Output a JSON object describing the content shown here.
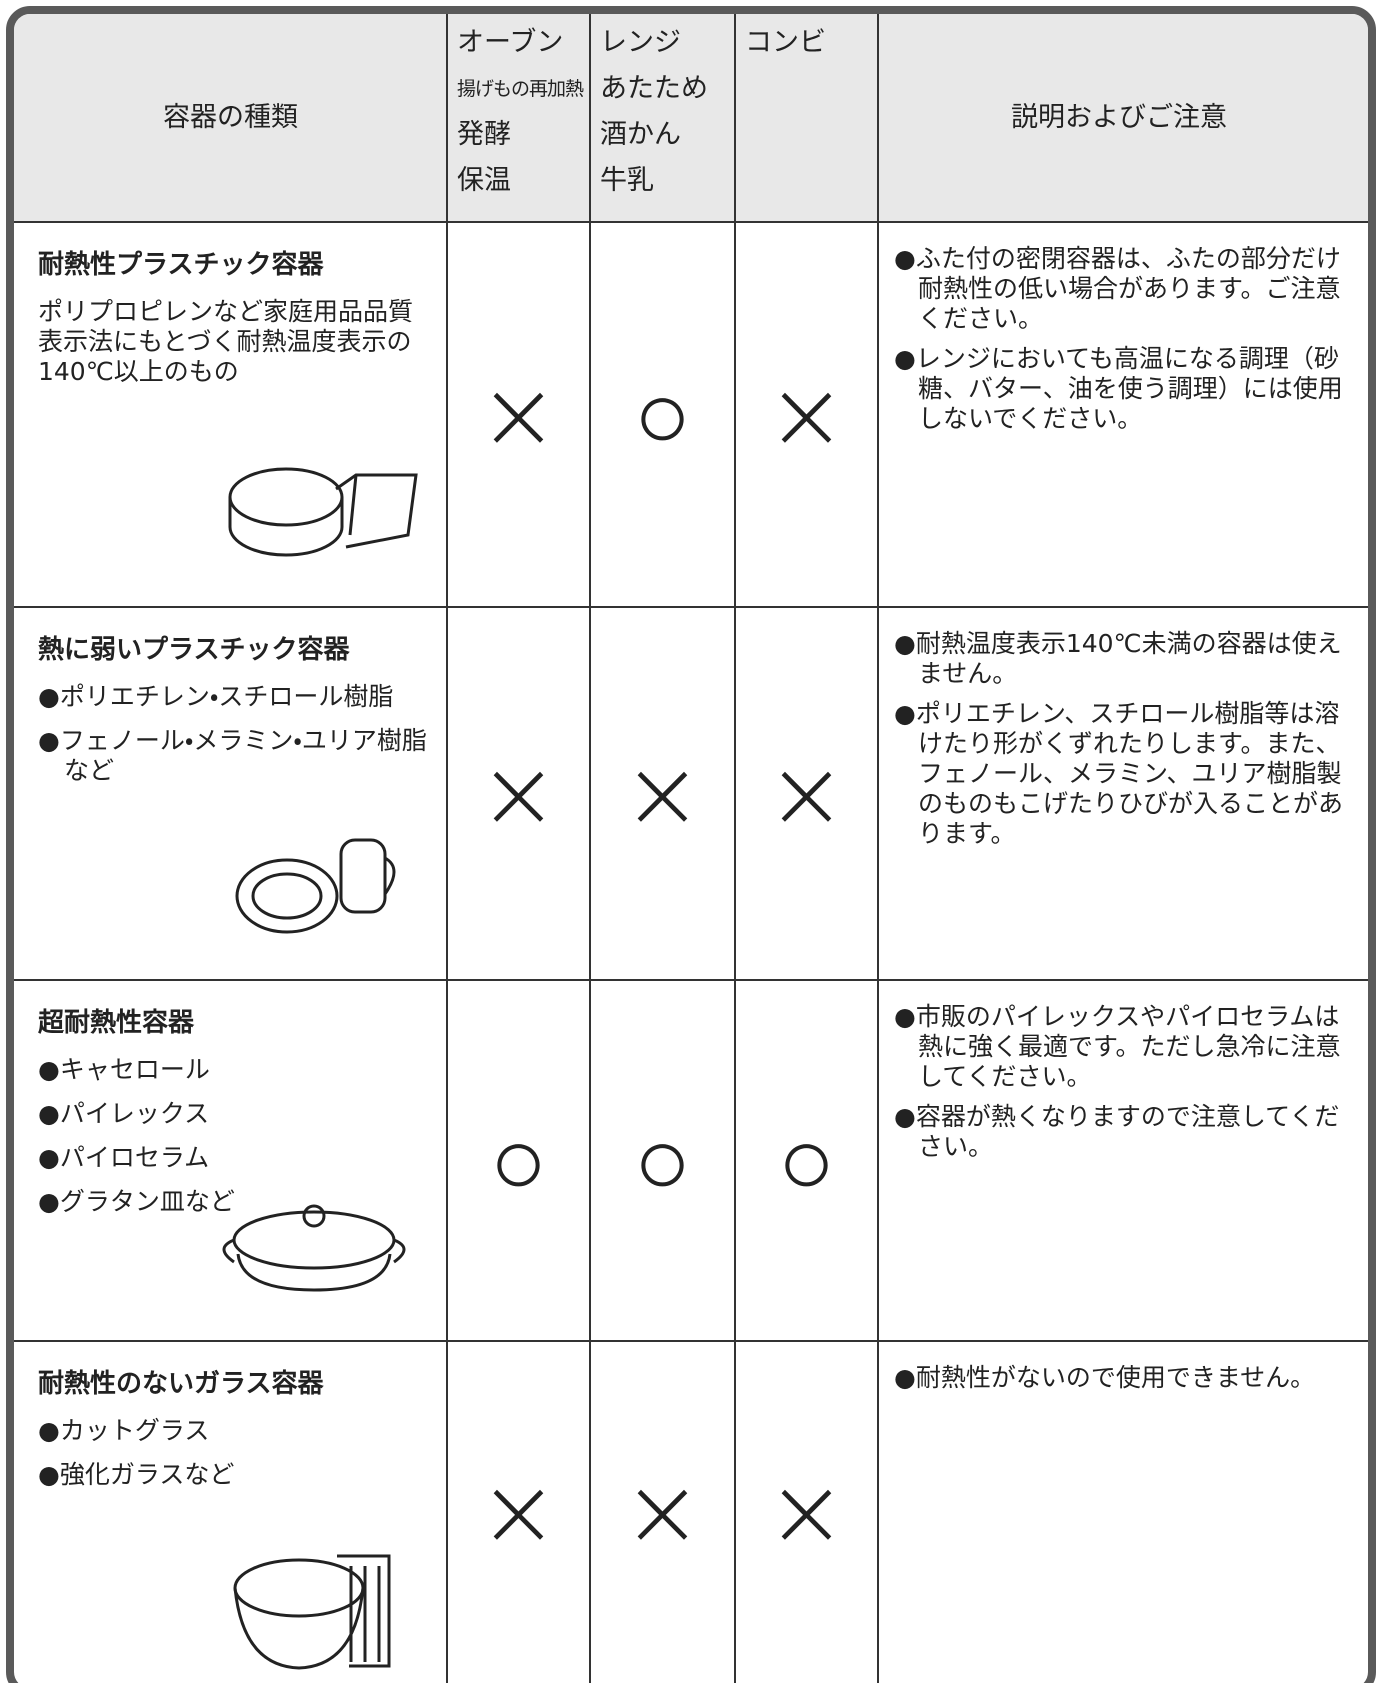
{
  "header": {
    "container_type": "容器の種類",
    "oven": [
      "オーブン",
      "揚げもの再加熱",
      "発酵",
      "保温"
    ],
    "range": [
      "レンジ",
      "あたため",
      "酒かん",
      "牛乳"
    ],
    "combi": [
      "コンビ"
    ],
    "notes": "説明およびご注意"
  },
  "rows": [
    {
      "name": "耐熱性プラスチック容器",
      "details": [
        "ポリプロピレンなど家庭用品品質表示法にもとづく耐熱温度表示の140℃以上のもの"
      ],
      "oven": "×",
      "range": "○",
      "combi": "×",
      "notes": [
        "●ふた付の密閉容器は、ふたの部分だけ耐熱性の低い場合があります。ご注意ください。",
        "●レンジにおいても高温になる調理（砂糖、バター、油を使う調理）には使用しないでください。"
      ]
    },
    {
      "name": "熱に弱いプラスチック容器",
      "details": [
        "●ポリエチレン・スチロール樹脂",
        "●フェノール・メラミン・ユリア樹脂など"
      ],
      "oven": "×",
      "range": "×",
      "combi": "×",
      "notes": [
        "●耐熱温度表示140℃未満の容器は使えません。",
        "●ポリエチレン、スチロール樹脂等は溶けたり形がくずれたりします。また、フェノール、メラミン、ユリア樹脂製のものもこげたりひびが入ることがあります。"
      ]
    },
    {
      "name": "超耐熱性容器",
      "details": [
        "●キャセロール",
        "●パイレックス",
        "●パイロセラム",
        "●グラタン皿など"
      ],
      "oven": "○",
      "range": "○",
      "combi": "○",
      "notes": [
        "●市販のパイレックスやパイロセラムは熱に強く最適です。ただし急冷に注意してください。",
        "●容器が熱くなりますので注意してください。"
      ]
    },
    {
      "name": "耐熱性のないガラス容器",
      "details": [
        "●カットグラス",
        "●強化ガラスなど"
      ],
      "oven": "×",
      "range": "×",
      "combi": "×",
      "notes": [
        "●耐熱性がないので使用できません。"
      ]
    }
  ]
}
